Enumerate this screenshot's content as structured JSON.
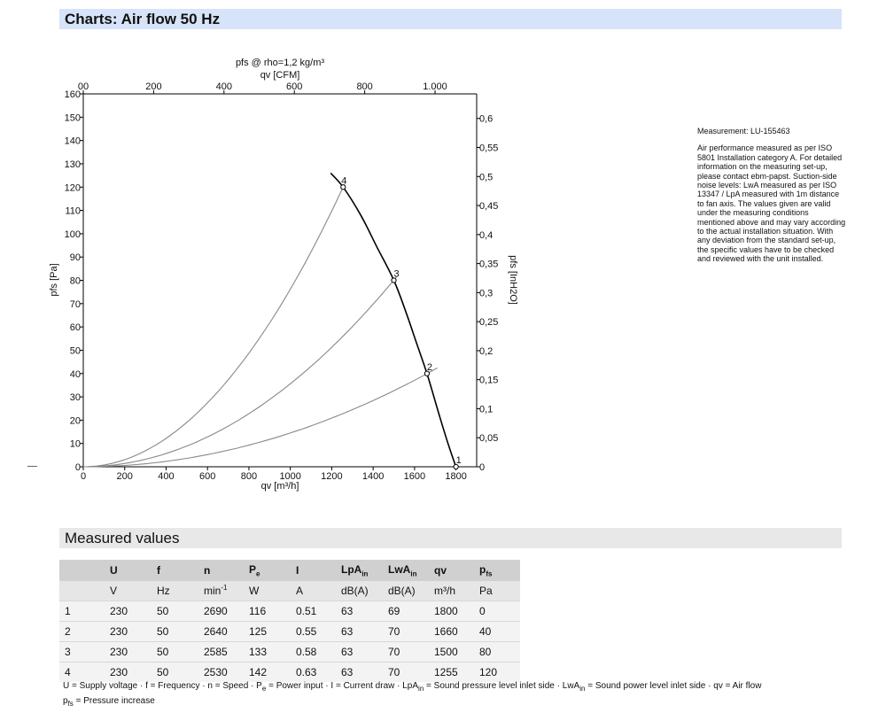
{
  "header": {
    "title": "Charts: Air flow 50 Hz"
  },
  "note": {
    "measurement": "Measurement: LU-155463",
    "text": "Air performance measured as per ISO 5801 Installation category A. For detailed information on the measuring set-up, please contact ebm-papst. Suction-side noise levels: LwA measured as per ISO 13347 / LpA measured with 1m distance to fan axis. The values given are valid under the measuring conditions mentioned above and may vary according to the actual installation situation. With any deviation from the standard set-up, the specific values have to be checked and reviewed with the unit installed."
  },
  "chart_data": {
    "type": "line",
    "title": "pfs @ rho=1,2 kg/m³",
    "xlabel": "qv [m³/h]",
    "ylabel": "pfs [Pa]",
    "x2label": "qv [CFM]",
    "y2label": "pfs [InH2O]",
    "xlim": [
      0,
      1900
    ],
    "ylim": [
      0,
      160
    ],
    "x2lim": [
      0,
      1118.3
    ],
    "y2lim": [
      0,
      0.6423
    ],
    "xticks": [
      "0",
      "200",
      "400",
      "600",
      "800",
      "1000",
      "1200",
      "1400",
      "1600",
      "1800"
    ],
    "yticks": [
      "0",
      "10",
      "20",
      "30",
      "40",
      "50",
      "60",
      "70",
      "80",
      "90",
      "100",
      "110",
      "120",
      "130",
      "140",
      "150",
      "160"
    ],
    "x2ticks": [
      "00",
      "200",
      "400",
      "600",
      "800",
      "1.000"
    ],
    "y2ticks": [
      "0",
      "0,05",
      "0,1",
      "0,15",
      "0,2",
      "0,25",
      "0,3",
      "0,35",
      "0,4",
      "0,45",
      "0,5",
      "0,55",
      "0,6"
    ],
    "fan_curve": [
      {
        "x": 1195,
        "y": 126
      },
      {
        "x": 1255,
        "y": 120
      },
      {
        "x": 1340,
        "y": 108
      },
      {
        "x": 1420,
        "y": 94
      },
      {
        "x": 1500,
        "y": 80
      },
      {
        "x": 1560,
        "y": 66
      },
      {
        "x": 1610,
        "y": 53
      },
      {
        "x": 1660,
        "y": 40
      },
      {
        "x": 1720,
        "y": 22
      },
      {
        "x": 1765,
        "y": 9
      },
      {
        "x": 1800,
        "y": 0
      }
    ],
    "system_curves": [
      {
        "label": "4",
        "k": 7.62e-05,
        "xmax": 1262
      },
      {
        "label": "3",
        "k": 3.56e-05,
        "xmax": 1515
      },
      {
        "label": "2",
        "k": 1.45e-05,
        "xmax": 1710
      }
    ],
    "points": [
      {
        "label": "1",
        "x": 1800,
        "y": 0
      },
      {
        "label": "2",
        "x": 1660,
        "y": 40
      },
      {
        "label": "3",
        "x": 1500,
        "y": 80
      },
      {
        "label": "4",
        "x": 1255,
        "y": 120
      }
    ]
  },
  "measured": {
    "title": "Measured values",
    "headers": [
      "",
      "U",
      "f",
      "n",
      "P",
      "I",
      "LpA",
      "LwA",
      "qv",
      "p"
    ],
    "header_subs": [
      "",
      "",
      "",
      "",
      "e",
      "",
      "in",
      "in",
      "",
      "fs"
    ],
    "units": [
      "",
      "V",
      "Hz",
      "min",
      "W",
      "A",
      "dB(A)",
      "dB(A)",
      "m³/h",
      "Pa"
    ],
    "min_sup": "-1",
    "rows": [
      [
        "1",
        "230",
        "50",
        "2690",
        "116",
        "0.51",
        "63",
        "69",
        "1800",
        "0"
      ],
      [
        "2",
        "230",
        "50",
        "2640",
        "125",
        "0.55",
        "63",
        "70",
        "1660",
        "40"
      ],
      [
        "3",
        "230",
        "50",
        "2585",
        "133",
        "0.58",
        "63",
        "70",
        "1500",
        "80"
      ],
      [
        "4",
        "230",
        "50",
        "2530",
        "142",
        "0.63",
        "63",
        "70",
        "1255",
        "120"
      ]
    ]
  },
  "legend": {
    "line1a": "U = Supply voltage · f = Frequency · n = Speed · P",
    "line1b": " = Power input · I = Current draw · LpA",
    "line1c": " = Sound pressure level inlet side · LwA",
    "line1d": " = Sound power level inlet side · qv = Air flow",
    "sub_e": "e",
    "sub_in": "in",
    "line2a": "p",
    "sub_fs": "fs",
    "line2b": " = Pressure increase"
  }
}
